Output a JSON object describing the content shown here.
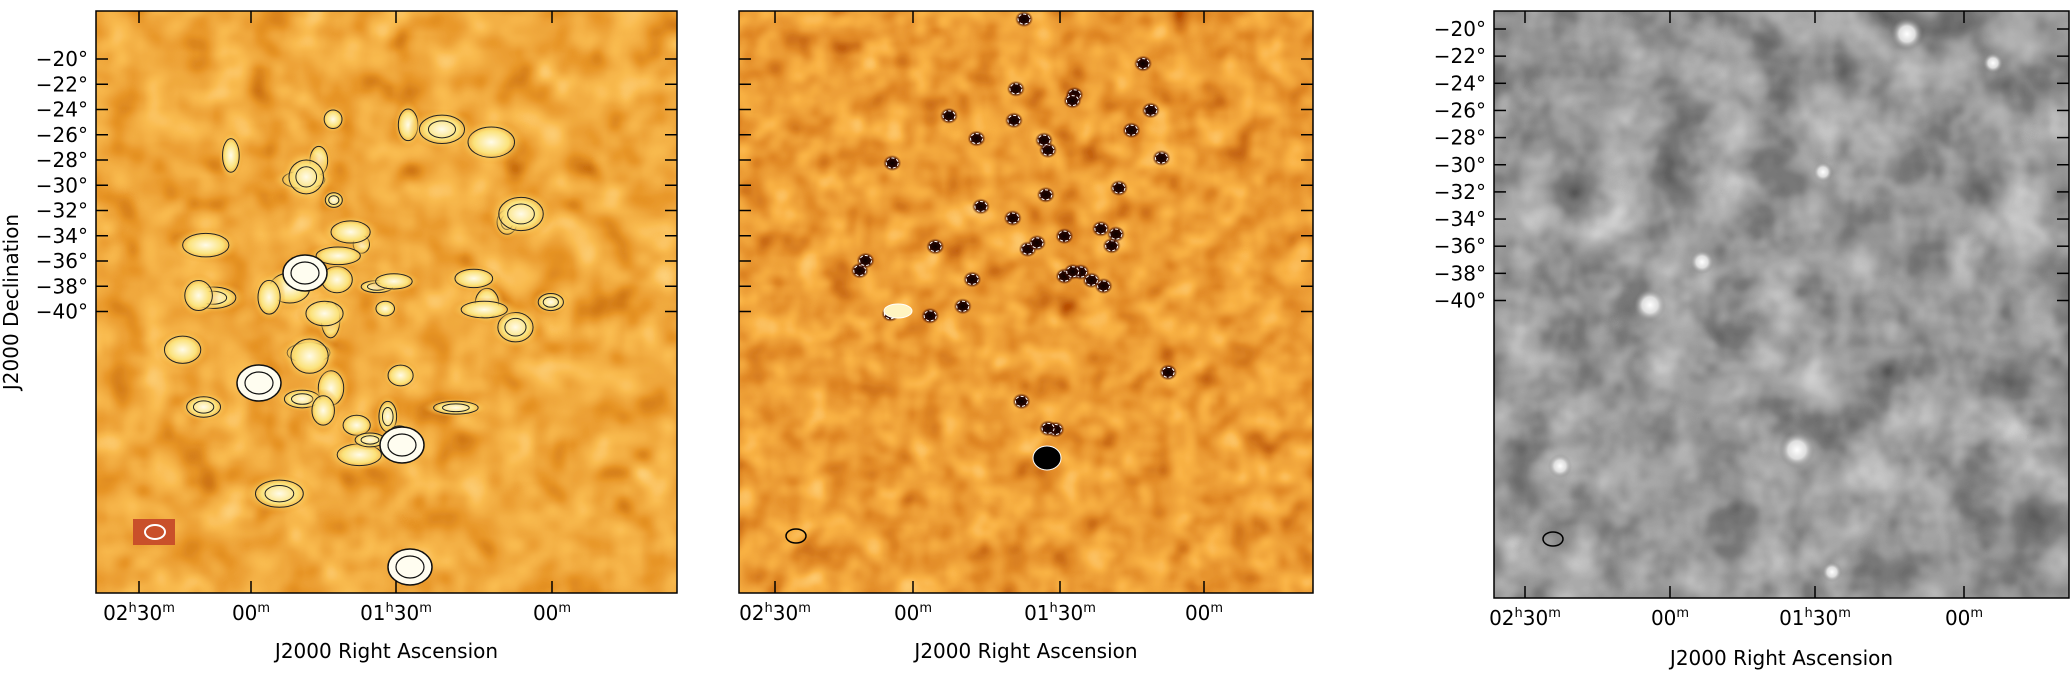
{
  "panels": [
    {
      "y_label": "J2000 Declination",
      "x_label": "J2000 Right Ascension",
      "dec_ticks": [
        "−20°",
        "−22°",
        "−24°",
        "−26°",
        "−28°",
        "−30°",
        "−32°",
        "−34°",
        "−36°",
        "−38°",
        "−40°"
      ],
      "ra_ticks": [
        [
          "02",
          "h",
          "30",
          "m"
        ],
        [
          "00",
          "m"
        ],
        [
          "01",
          "h",
          "30",
          "m"
        ],
        [
          "00",
          "m"
        ]
      ]
    },
    {
      "x_label": "J2000 Right Ascension",
      "ra_ticks": [
        [
          "02",
          "h",
          "30",
          "m"
        ],
        [
          "00",
          "m"
        ],
        [
          "01",
          "h",
          "30",
          "m"
        ],
        [
          "00",
          "m"
        ]
      ]
    },
    {
      "x_label": "J2000 Right Ascension",
      "dec_ticks": [
        "−20°",
        "−22°",
        "−24°",
        "−26°",
        "−28°",
        "−30°",
        "−32°",
        "−34°",
        "−36°",
        "−38°",
        "−40°"
      ],
      "ra_ticks": [
        [
          "02",
          "h",
          "30",
          "m"
        ],
        [
          "00",
          "m"
        ],
        [
          "01",
          "h",
          "30",
          "m"
        ],
        [
          "00",
          "m"
        ]
      ]
    }
  ]
}
